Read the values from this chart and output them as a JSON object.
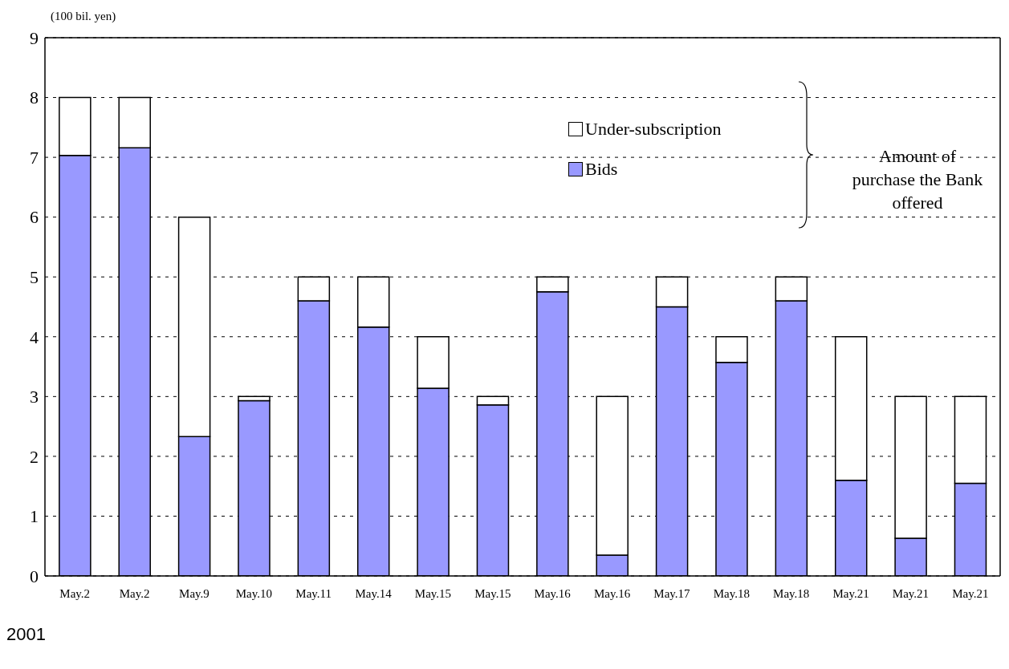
{
  "chart_data": {
    "type": "bar",
    "stacked": true,
    "ylabel": "(100 bil. yen)",
    "categories": [
      "May.2",
      "May.2",
      "May.9",
      "May.10",
      "May.11",
      "May.14",
      "May.15",
      "May.15",
      "May.16",
      "May.16",
      "May.17",
      "May.18",
      "May.18",
      "May.21",
      "May.21",
      "May.21"
    ],
    "series": [
      {
        "name": "Bids",
        "color": "#9999ff",
        "values": [
          7.03,
          7.16,
          2.33,
          2.93,
          4.6,
          4.16,
          3.14,
          2.86,
          4.75,
          0.35,
          4.5,
          3.57,
          4.6,
          1.6,
          0.63,
          1.55
        ]
      },
      {
        "name": "Under-subscription",
        "color": "#ffffff",
        "values": [
          0.97,
          0.84,
          3.67,
          0.07,
          0.4,
          0.84,
          0.86,
          0.14,
          0.25,
          2.65,
          0.5,
          0.43,
          0.4,
          2.4,
          2.37,
          1.45
        ]
      }
    ],
    "ylim": [
      0,
      9
    ],
    "yticks": [
      0,
      1,
      2,
      3,
      4,
      5,
      6,
      7,
      8,
      9
    ],
    "grid": "y",
    "legend": "top right",
    "annotations": [
      "Amount of purchase the Bank offered",
      "2001"
    ]
  }
}
